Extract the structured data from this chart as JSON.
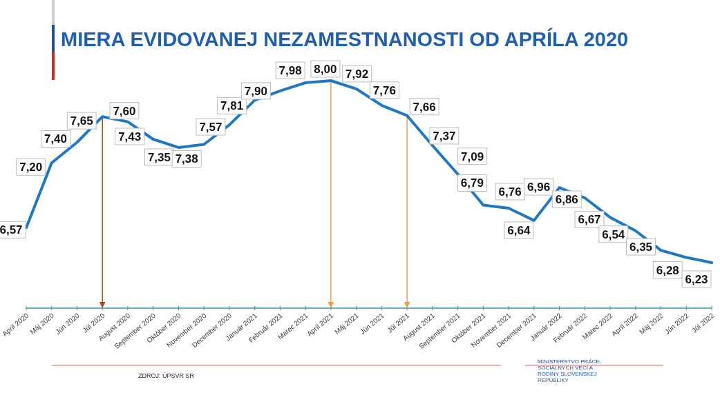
{
  "chart_data": {
    "type": "line",
    "title": "MIERA EVIDOVANEJ NEZAMESTNANOSTI OD APRÍLA 2020",
    "categories": [
      "Apríl 2020",
      "Máj 2020",
      "Jún 2020",
      "Júl 2020",
      "August 2020",
      "September 2020",
      "Október 2020",
      "November 2020",
      "December 2020",
      "Január 2021",
      "Február 2021",
      "Marec 2021",
      "Apríl 2021",
      "Máj 2021",
      "Jún 2021",
      "Júl 2021",
      "August 2021",
      "September 2021",
      "Október 2021",
      "November 2021",
      "December 2021",
      "Január 2022",
      "Február 2022",
      "Marec 2022",
      "Apríl 2022",
      "Máj 2022",
      "Jún 2022",
      "Júl 2022"
    ],
    "series": [
      {
        "color": "#1f78c1",
        "values": [
          6.57,
          7.2,
          7.4,
          7.65,
          7.6,
          7.43,
          7.35,
          7.38,
          7.57,
          7.81,
          7.9,
          7.98,
          8.0,
          7.92,
          7.76,
          7.66,
          7.37,
          7.09,
          6.79,
          6.76,
          6.64,
          6.96,
          6.86,
          6.67,
          6.54,
          6.35,
          6.28,
          6.23
        ],
        "value_labels": [
          "6,57",
          "7,20",
          "7,40",
          "7,65",
          "7,60",
          "7,43",
          "7,35",
          "7,38",
          "7,57",
          "7,81",
          "7,90",
          "7,98",
          "8,00",
          "7,92",
          "7,76",
          "7,66",
          "7,37",
          "7,09",
          "6,79",
          "6,76",
          "6,64",
          "6,96",
          "6,86",
          "6,67",
          "6,54",
          "6,35",
          "6,28",
          "6,23"
        ]
      }
    ],
    "tick_labels": "x",
    "marker": "none",
    "line_style": "solid",
    "ref_lines": [
      {
        "axis": "x",
        "value": "Júl 2020",
        "color": "#a0522d"
      },
      {
        "axis": "x",
        "value": "Apríl 2021",
        "color": "#e8a050"
      },
      {
        "axis": "x",
        "value": "Júl 2021",
        "color": "#e8a050"
      }
    ],
    "annotations": [
      "ZDROJ: ÚPSVR SR",
      "MINISTERSTVO PRÁCE, SOCIÁLNYCH VECÍ A RODINY SLOVENSKEJ REPUBLIKY"
    ]
  }
}
